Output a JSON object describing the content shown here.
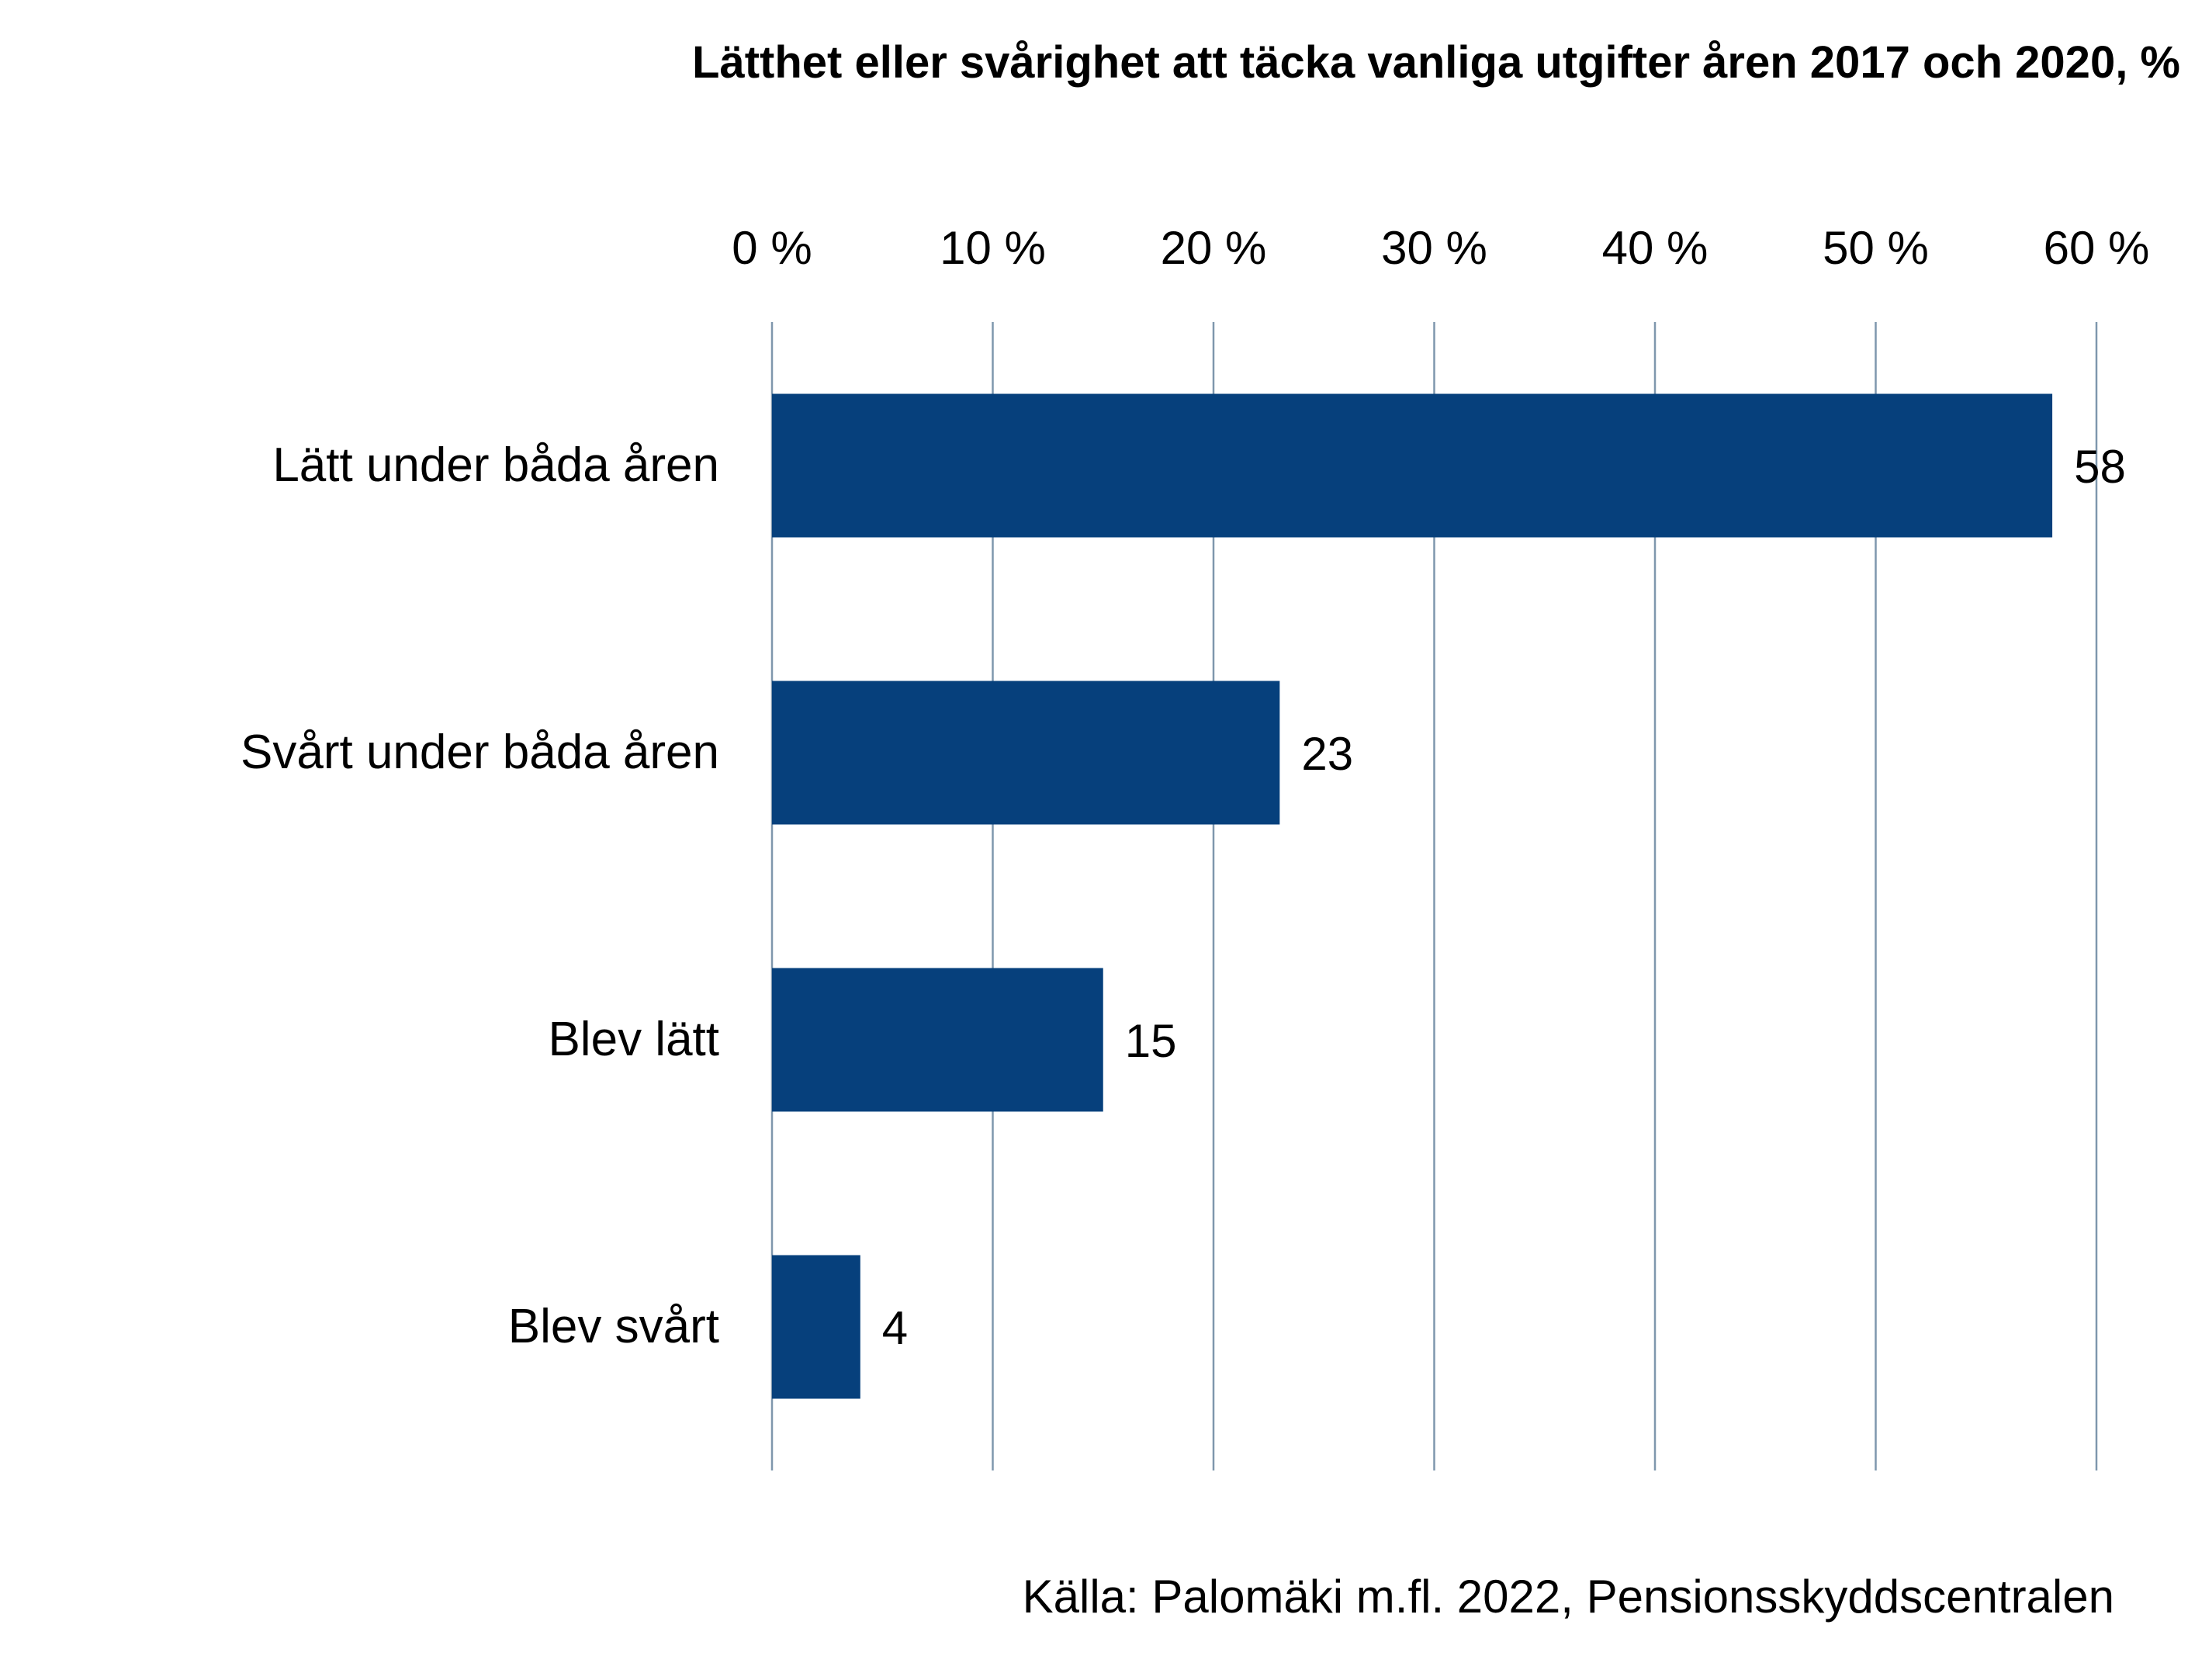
{
  "chart_data": {
    "type": "bar",
    "orientation": "horizontal",
    "title": "Lätthet eller svårighet att täcka vanliga utgifter åren 2017 och 2020, %",
    "categories": [
      "Lätt under båda åren",
      "Svårt under båda åren",
      "Blev lätt",
      "Blev svårt"
    ],
    "values": [
      58,
      23,
      15,
      4
    ],
    "data_labels": [
      "58",
      "23",
      "15",
      "4"
    ],
    "xlim": [
      0,
      60
    ],
    "x_ticks": [
      0,
      10,
      20,
      30,
      40,
      50,
      60
    ],
    "x_tick_labels": [
      "0 %",
      "10 %",
      "20 %",
      "30 %",
      "40 %",
      "50 %",
      "60 %"
    ],
    "x_axis_position": "top",
    "xlabel": "",
    "ylabel": "",
    "grid": true,
    "legend": "none",
    "bar_color": "#06407C",
    "grid_color": "#7f97ad",
    "source": "Källa: Palomäki m.fl. 2022, Pensionsskyddscentralen"
  }
}
